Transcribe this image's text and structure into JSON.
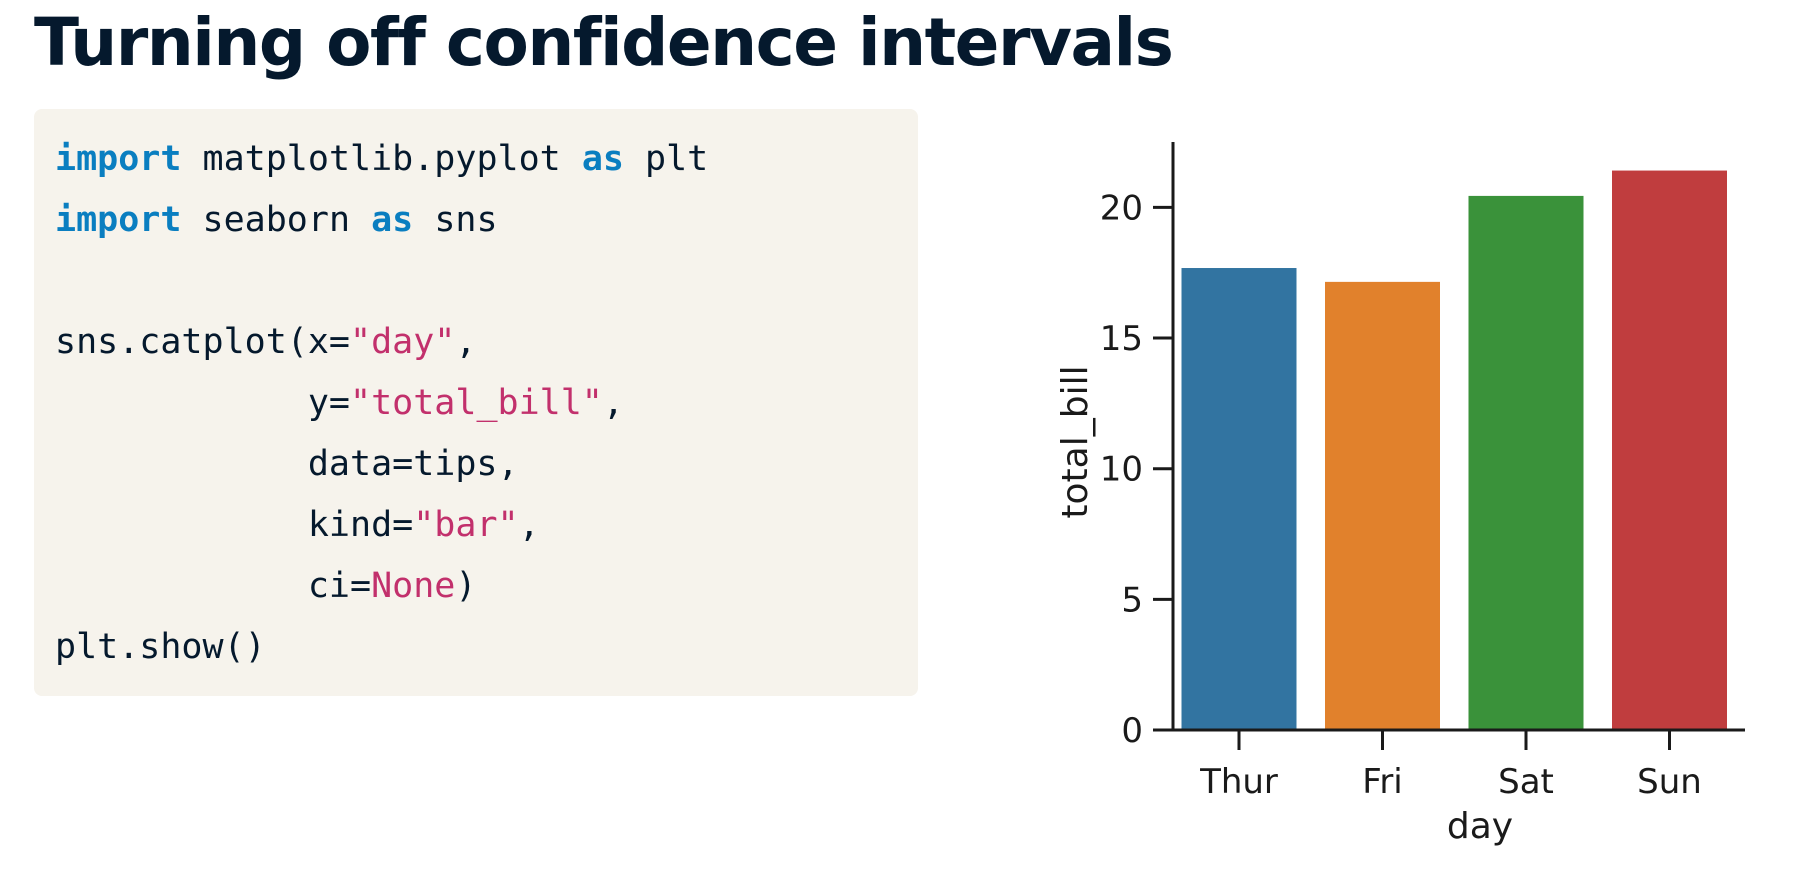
{
  "slide": {
    "title": "Turning off confidence intervals"
  },
  "code": {
    "lines": [
      [
        {
          "t": "import",
          "c": "kw"
        },
        {
          "t": " matplotlib.pyplot "
        },
        {
          "t": "as",
          "c": "kw"
        },
        {
          "t": " plt"
        }
      ],
      [
        {
          "t": "import",
          "c": "kw"
        },
        {
          "t": " seaborn "
        },
        {
          "t": "as",
          "c": "kw"
        },
        {
          "t": " sns"
        }
      ],
      [],
      [
        {
          "t": "sns.catplot(x="
        },
        {
          "t": "\"day\"",
          "c": "str"
        },
        {
          "t": ","
        }
      ],
      [
        {
          "t": "            y="
        },
        {
          "t": "\"total_bill\"",
          "c": "str"
        },
        {
          "t": ","
        }
      ],
      [
        {
          "t": "            data=tips,"
        }
      ],
      [
        {
          "t": "            kind="
        },
        {
          "t": "\"bar\"",
          "c": "str"
        },
        {
          "t": ","
        }
      ],
      [
        {
          "t": "            ci="
        },
        {
          "t": "None",
          "c": "str"
        },
        {
          "t": ")"
        }
      ],
      [
        {
          "t": "plt.show()"
        }
      ]
    ]
  },
  "chart_data": {
    "type": "bar",
    "categories": [
      "Thur",
      "Fri",
      "Sat",
      "Sun"
    ],
    "values": [
      17.68,
      17.15,
      20.44,
      21.41
    ],
    "colors": [
      "#3274a1",
      "#e1812c",
      "#3a923a",
      "#c03d3e"
    ],
    "xlabel": "day",
    "ylabel": "total_bill",
    "ylim": [
      0,
      22.5
    ],
    "yticks": [
      0,
      5,
      10,
      15,
      20
    ],
    "ytick_labels": [
      "0",
      "5",
      "10",
      "15",
      "20"
    ],
    "grid": false,
    "legend": "none"
  }
}
